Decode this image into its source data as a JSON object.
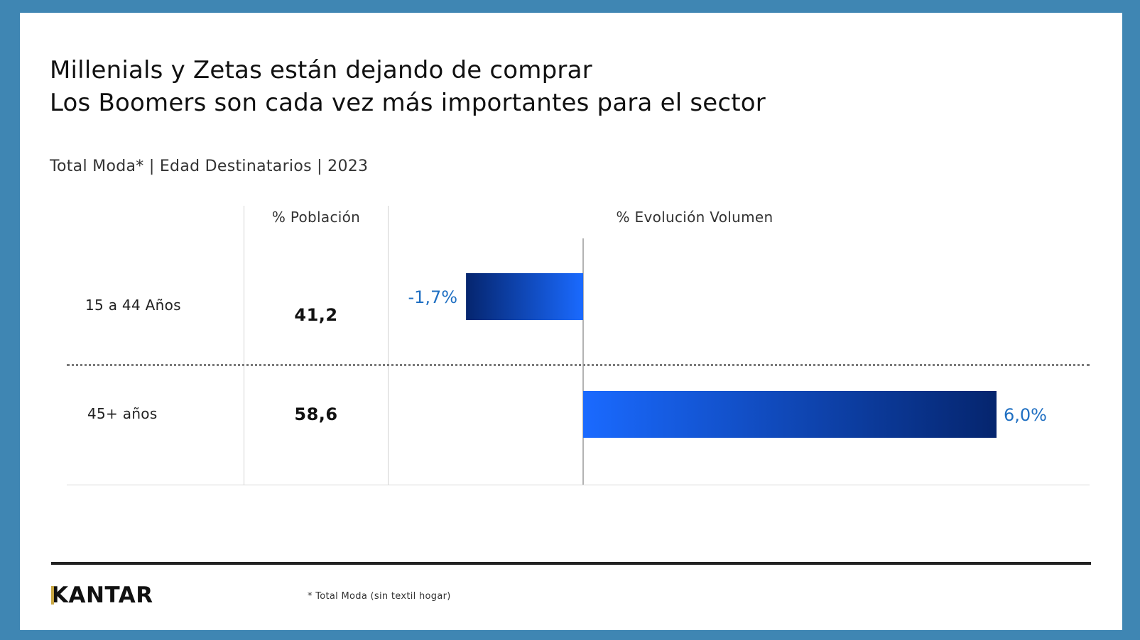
{
  "title_line1": "Millenials y Zetas están dejando de comprar",
  "title_line2": "Los Boomers son cada vez más importantes para el sector",
  "subtitle": "Total Moda* | Edad Destinatarios | 2023",
  "footnote": "* Total Moda (sin textil hogar)",
  "logo": "KANTAR",
  "colors": {
    "bar_light": "#1a6aff",
    "bar_dark": "#05256e",
    "label_blue": "#1f6fc2",
    "logo_accent": "#c8a642",
    "frame": "#3f86b3"
  },
  "chart_data": {
    "type": "table",
    "columns": [
      "% Población",
      "% Evolución Volumen"
    ],
    "rows": [
      {
        "label": "15 a 44 Años",
        "poblacion": "41,2",
        "evolucion": -1.7,
        "evolucion_label": "-1,7%"
      },
      {
        "label": "45+ años",
        "poblacion": "58,6",
        "evolucion": 6.0,
        "evolucion_label": "6,0%"
      }
    ]
  }
}
